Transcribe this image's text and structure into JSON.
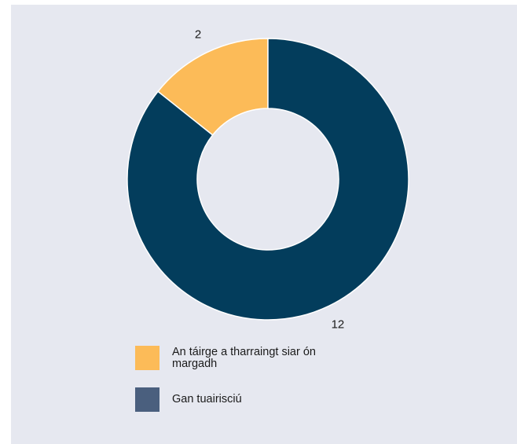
{
  "chart_data": {
    "type": "pie",
    "donut": true,
    "categories": [
      "An táirge a tharraingt siar ón margadh",
      "Gan tuairisciú"
    ],
    "values": [
      2,
      12
    ],
    "colors": [
      "#fcbb58",
      "#033d5c"
    ],
    "legend_colors": [
      "#fcbb58",
      "#4a5f7e"
    ],
    "data_labels": [
      "2",
      "12"
    ],
    "legend_position": "bottom-left"
  },
  "legend": {
    "items": [
      {
        "label": "An táirge a tharraingt siar ón margadh",
        "color": "#fcbb58"
      },
      {
        "label": "Gan tuairisciú",
        "color": "#4a5f7e"
      }
    ]
  },
  "colors": {
    "background": "#e6e8f0",
    "slice_border": "#ffffff",
    "text": "#1a1a1a"
  }
}
